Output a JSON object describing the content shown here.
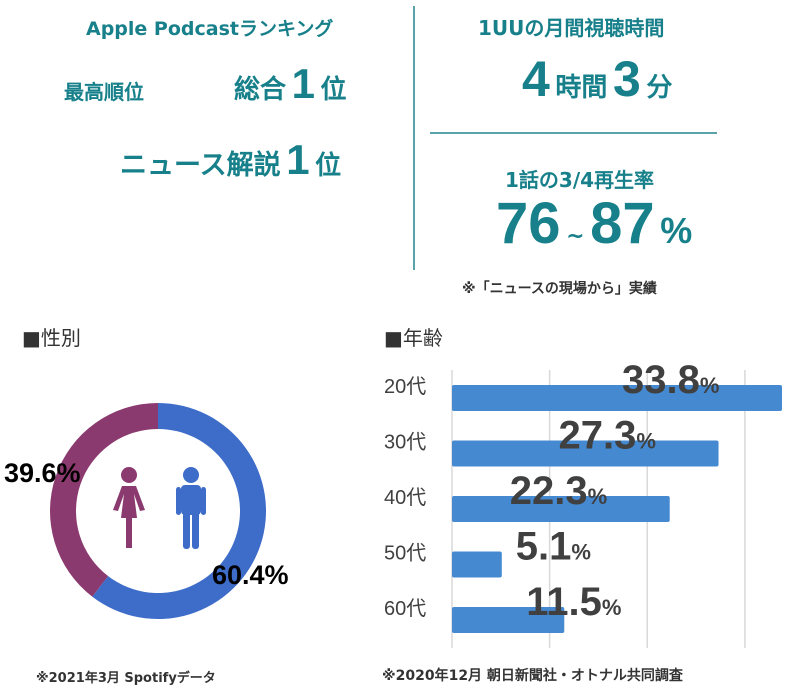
{
  "ranking": {
    "title": "Apple Podcastランキング",
    "label": "最高順位",
    "overall_prefix": "総合",
    "overall_rank": "1",
    "rank_suffix": "位",
    "news_prefix": "ニュース解説",
    "news_rank": "1"
  },
  "listening": {
    "title": "1UUの月間視聴時間",
    "hours": "4",
    "hours_unit": "時間",
    "minutes": "3",
    "minutes_unit": "分"
  },
  "completion": {
    "title": "1話の3/4再生率",
    "low": "76",
    "tilde": "~",
    "high": "87",
    "unit": "%",
    "note": "※「ニュースの現場から」実績"
  },
  "colors": {
    "teal": "#17808a",
    "female": "#8b3a6f",
    "male": "#3d6cc9",
    "bar": "#4589d0",
    "label": "#404040"
  },
  "chart_data": [
    {
      "type": "pie",
      "title": "■性別",
      "categories": [
        "女性",
        "男性"
      ],
      "values": [
        39.6,
        60.4
      ],
      "labels": [
        "39.6%",
        "60.4%"
      ],
      "icons": [
        "female-icon",
        "male-icon"
      ],
      "note": "※2021年3月 Spotifyデータ"
    },
    {
      "type": "bar",
      "orientation": "horizontal",
      "title": "■年齢",
      "categories": [
        "20代",
        "30代",
        "40代",
        "50代",
        "60代"
      ],
      "values": [
        33.8,
        27.3,
        22.3,
        5.1,
        11.5
      ],
      "value_labels": [
        "33.8",
        "27.3",
        "22.3",
        "5.1",
        "11.5"
      ],
      "unit": "%",
      "xlim": [
        0,
        34
      ],
      "grid": true,
      "note": "※2020年12月 朝日新聞社・オトナル共同調査"
    }
  ]
}
